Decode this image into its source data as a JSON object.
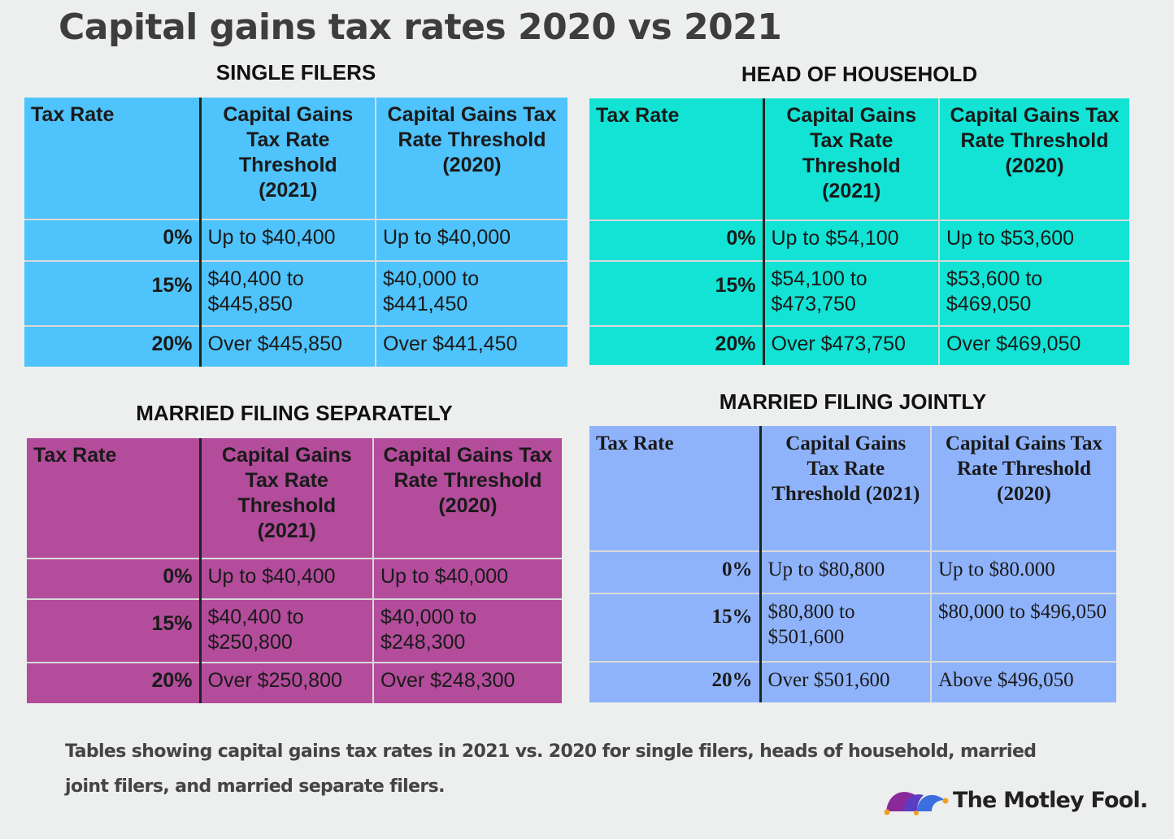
{
  "title": "Capital gains tax rates 2020 vs 2021",
  "sections": {
    "single": {
      "heading": "SINGLE FILERS",
      "header": [
        "Tax Rate",
        "Capital Gains Tax Rate Threshold (2021)",
        "Capital Gains Tax Rate Threshold (2020)"
      ],
      "rows": [
        {
          "rate": "0%",
          "y2021": "Up to $40,400",
          "y2020": "Up to $40,000"
        },
        {
          "rate": "15%",
          "y2021": "$40,400 to $445,850",
          "y2020": "$40,000 to $441,450"
        },
        {
          "rate": "20%",
          "y2021": "Over $445,850",
          "y2020": "Over $441,450"
        }
      ],
      "color": "#4fc3fb"
    },
    "head_of_household": {
      "heading": "HEAD OF HOUSEHOLD",
      "header": [
        "Tax Rate",
        "Capital Gains Tax Rate Threshold (2021)",
        "Capital Gains Tax Rate Threshold (2020)"
      ],
      "rows": [
        {
          "rate": "0%",
          "y2021": "Up to $54,100",
          "y2020": "Up to $53,600"
        },
        {
          "rate": "15%",
          "y2021": "$54,100 to $473,750",
          "y2020": "$53,600 to $469,050"
        },
        {
          "rate": "20%",
          "y2021": "Over $473,750",
          "y2020": "Over $469,050"
        }
      ],
      "color": "#12e3d4"
    },
    "married_separately": {
      "heading": "MARRIED FILING SEPARATELY",
      "header": [
        "Tax Rate",
        "Capital Gains Tax Rate Threshold (2021)",
        "Capital Gains Tax Rate Threshold (2020)"
      ],
      "rows": [
        {
          "rate": "0%",
          "y2021": "Up to $40,400",
          "y2020": "Up to $40,000"
        },
        {
          "rate": "15%",
          "y2021": "$40,400 to $250,800",
          "y2020": "$40,000 to $248,300"
        },
        {
          "rate": "20%",
          "y2021": "Over $250,800",
          "y2020": "Over $248,300"
        }
      ],
      "color": "#b34c9b"
    },
    "married_jointly": {
      "heading": "MARRIED FILING JOINTLY",
      "header": [
        "Tax Rate",
        "Capital Gains Tax Rate Threshold (2021)",
        "Capital Gains Tax Rate Threshold (2020)"
      ],
      "rows": [
        {
          "rate": "0%",
          "y2021": "Up to $80,800",
          "y2020": "Up to $80.000"
        },
        {
          "rate": "15%",
          "y2021": "$80,800 to $501,600",
          "y2020": "$80,000 to $496,050"
        },
        {
          "rate": "20%",
          "y2021": "Over $501,600",
          "y2020": "Above $496,050"
        }
      ],
      "color": "#8fb3fb"
    }
  },
  "caption": "Tables showing capital gains tax rates in 2021 vs. 2020 for single filers, heads of household, married joint filers, and married separate filers.",
  "logo": {
    "text": "The Motley Fool.",
    "icon": "jester-hat-icon"
  }
}
